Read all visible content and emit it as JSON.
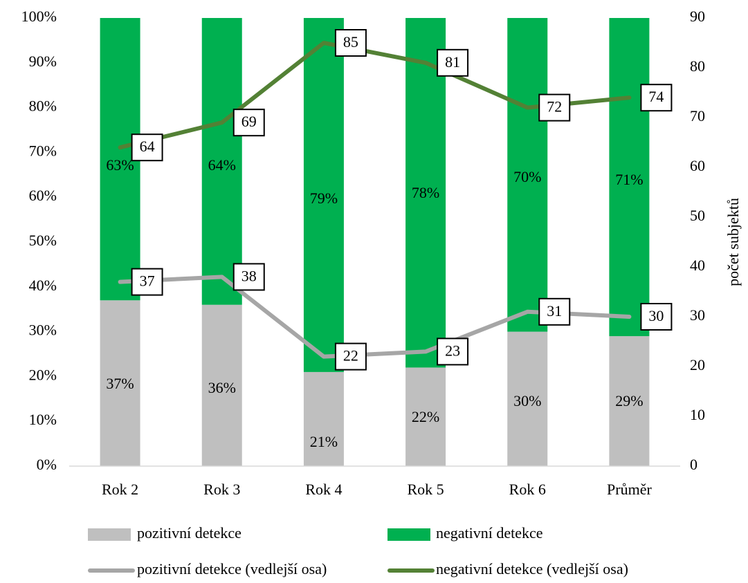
{
  "chart_data": {
    "type": "bar",
    "stacked": true,
    "percent_stacked": true,
    "categories": [
      "Rok 2",
      "Rok 3",
      "Rok 4",
      "Rok 5",
      "Rok 6",
      "Průměr"
    ],
    "bar_series": [
      {
        "name": "pozitivní detekce",
        "color": "#BFBFBF",
        "values": [
          37,
          36,
          21,
          22,
          30,
          29
        ],
        "labels": [
          "37%",
          "36%",
          "21%",
          "22%",
          "30%",
          "29%"
        ]
      },
      {
        "name": "negativní detekce",
        "color": "#00B050",
        "values": [
          63,
          64,
          79,
          78,
          70,
          71
        ],
        "labels": [
          "63%",
          "64%",
          "79%",
          "78%",
          "70%",
          "71%"
        ]
      }
    ],
    "line_series": [
      {
        "name": "pozitivní detekce (vedlejší osa)",
        "color": "#A6A6A6",
        "values": [
          37,
          38,
          22,
          23,
          31,
          30
        ]
      },
      {
        "name": "negativní detekce (vedlejší osa)",
        "color": "#538135",
        "values": [
          64,
          69,
          85,
          81,
          72,
          74
        ]
      }
    ],
    "y_left": {
      "ticks": [
        "0%",
        "10%",
        "20%",
        "30%",
        "40%",
        "50%",
        "60%",
        "70%",
        "80%",
        "90%",
        "100%"
      ],
      "ylim": [
        0,
        100
      ]
    },
    "y_right": {
      "label": "počet subjektů",
      "ticks": [
        "0",
        "10",
        "20",
        "30",
        "40",
        "50",
        "60",
        "70",
        "80",
        "90"
      ],
      "ylim": [
        0,
        90
      ]
    },
    "grid": false,
    "legend_position": "bottom"
  }
}
